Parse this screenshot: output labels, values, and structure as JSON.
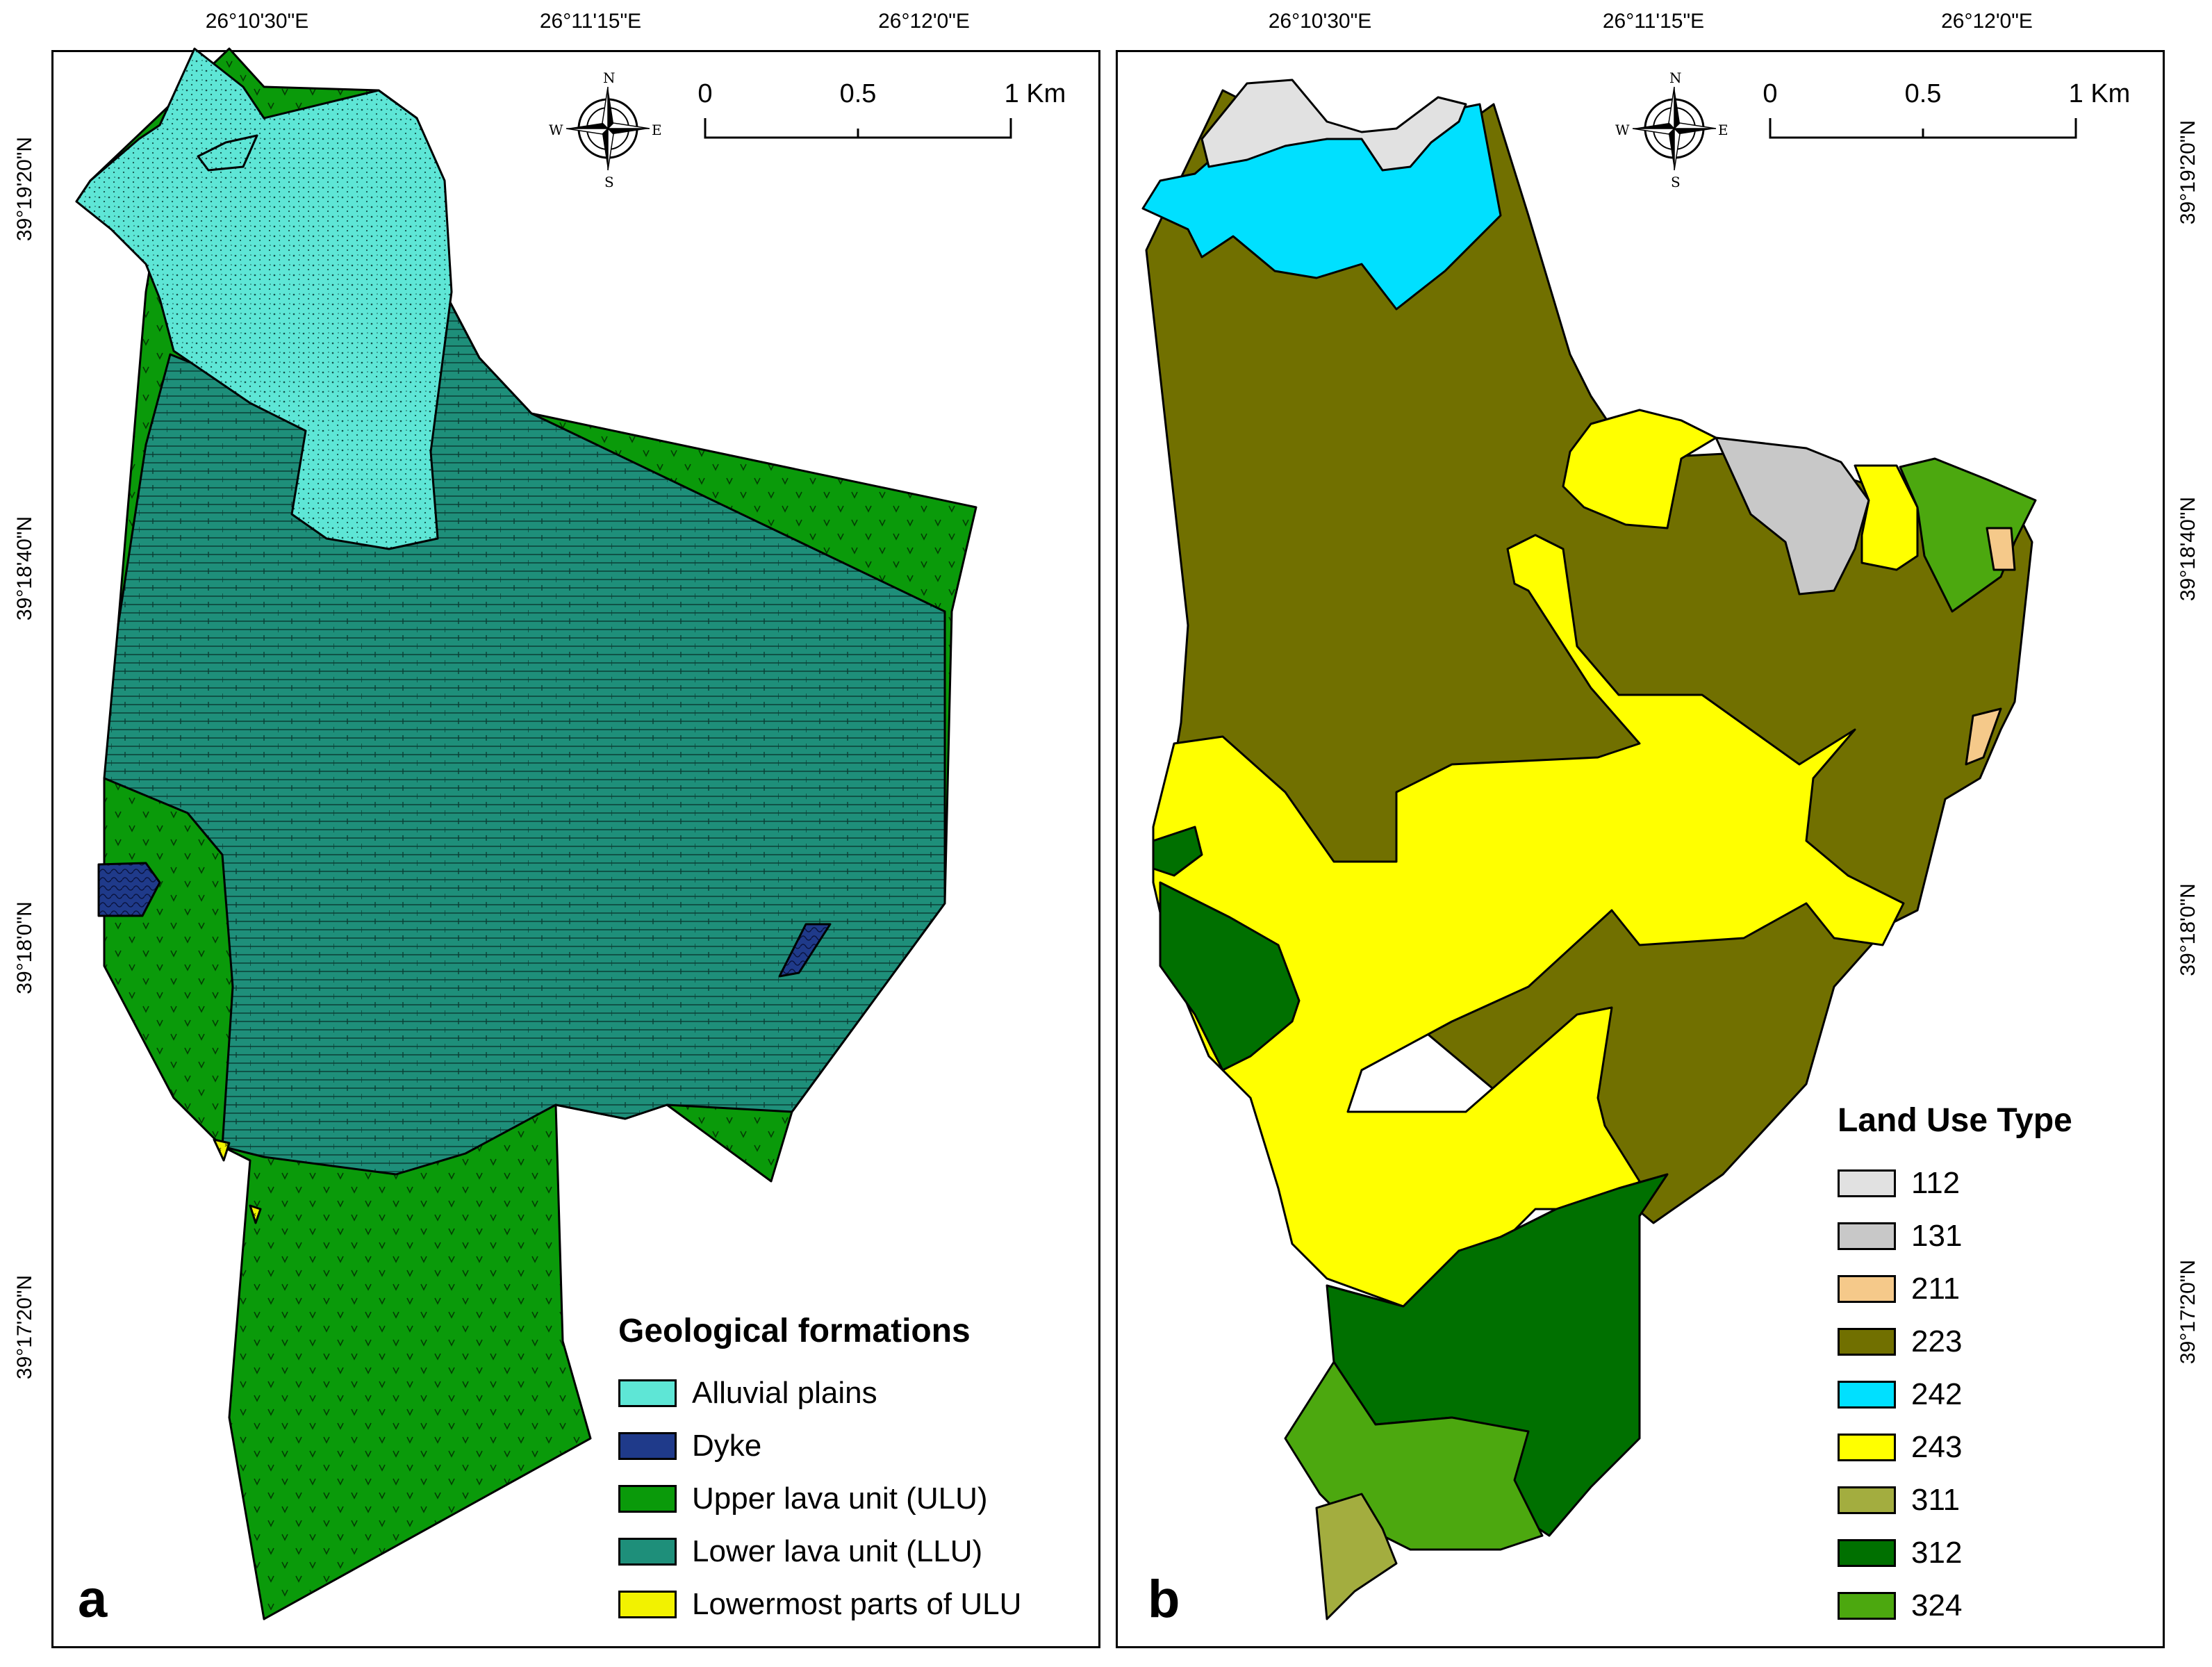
{
  "panel_a": {
    "letter": "a",
    "legend_title": "Geological formations",
    "legend": [
      {
        "label": "Alluvial plains",
        "color": "#5ee6d6"
      },
      {
        "label": "Dyke",
        "color": "#1f3a8a"
      },
      {
        "label": "Upper lava unit (ULU)",
        "color": "#0a9a0a"
      },
      {
        "label": "Lower lava unit (LLU)",
        "color": "#1e8f7a"
      },
      {
        "label": "Lowermost parts of ULU",
        "color": "#f2f200"
      }
    ]
  },
  "panel_b": {
    "letter": "b",
    "legend_title": "Land Use Type",
    "legend": [
      {
        "label": "112",
        "color": "#e1e1e1"
      },
      {
        "label": "131",
        "color": "#c8c8c8"
      },
      {
        "label": "211",
        "color": "#f5c98a"
      },
      {
        "label": "223",
        "color": "#717000"
      },
      {
        "label": "242",
        "color": "#00e0ff"
      },
      {
        "label": "243",
        "color": "#ffff00"
      },
      {
        "label": "311",
        "color": "#a3ad3f"
      },
      {
        "label": "312",
        "color": "#007000"
      },
      {
        "label": "324",
        "color": "#4ca80f"
      }
    ]
  },
  "coords": {
    "lon": [
      "26°10'30\"E",
      "26°11'15\"E",
      "26°12'0\"E"
    ],
    "lat": [
      "39°19'20\"N",
      "39°18'40\"N",
      "39°18'0\"N",
      "39°17'20\"N"
    ]
  },
  "scale_bar": {
    "labels": [
      "0",
      "0.5",
      "1 Km"
    ]
  },
  "compass": {
    "n": "N",
    "s": "S",
    "e": "E",
    "w": "W"
  }
}
